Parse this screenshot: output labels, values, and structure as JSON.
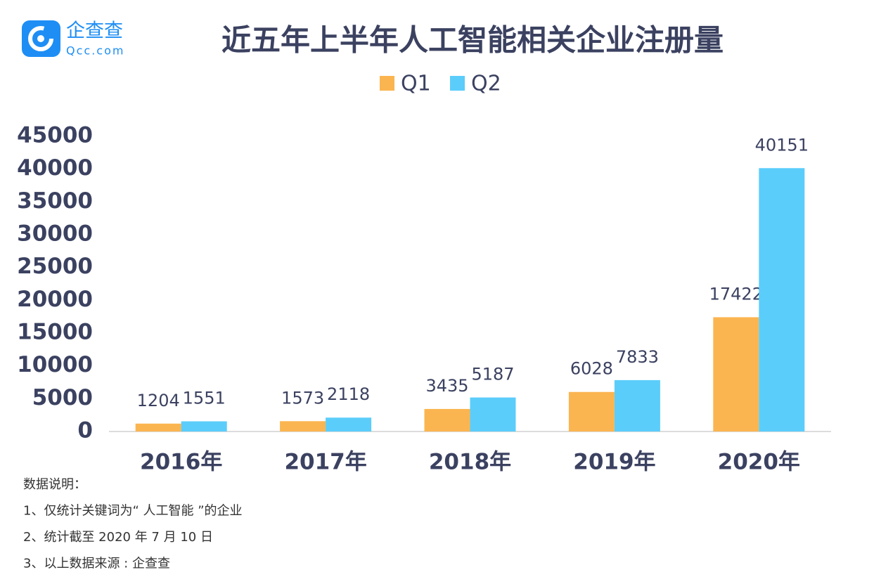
{
  "logo": {
    "name": "企查查",
    "domain": "Qcc.com"
  },
  "chart_data": {
    "type": "bar",
    "title": "近五年上半年人工智能相关企业注册量",
    "categories": [
      "2016年",
      "2017年",
      "2018年",
      "2019年",
      "2020年"
    ],
    "series": [
      {
        "name": "Q1",
        "color": "#fbb550",
        "values": [
          1204,
          1573,
          3435,
          6028,
          17422
        ]
      },
      {
        "name": "Q2",
        "color": "#5bcdfb",
        "values": [
          1551,
          2118,
          5187,
          7833,
          40151
        ]
      }
    ],
    "ylim": [
      0,
      45000
    ],
    "yticks": [
      0,
      5000,
      10000,
      15000,
      20000,
      25000,
      30000,
      35000,
      40000,
      45000
    ],
    "legend": "top",
    "grid": false
  },
  "notes": [
    "数据说明：",
    "1、仅统计关键词为“ 人工智能 ”的企业",
    "2、统计截至 2020 年 7 月 10 日",
    "3、以上数据来源 : 企查查"
  ]
}
